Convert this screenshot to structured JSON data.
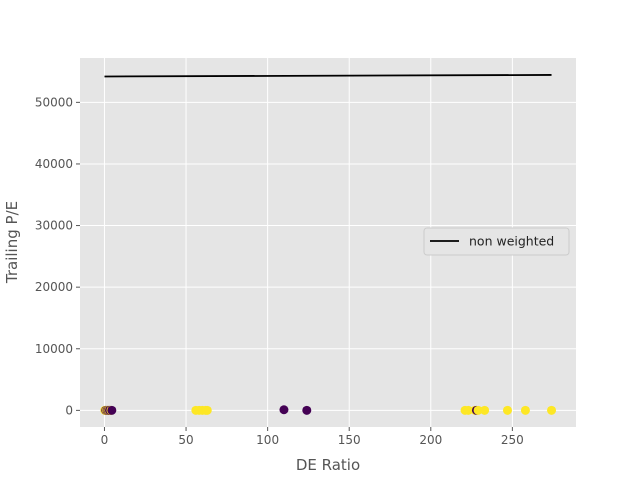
{
  "chart_data": {
    "type": "scatter",
    "xlabel": "DE Ratio",
    "ylabel": "Trailing P/E",
    "xlim": [
      -15,
      289
    ],
    "ylim": [
      -2700,
      57200
    ],
    "xticks": [
      0,
      50,
      100,
      150,
      200,
      250
    ],
    "yticks": [
      0,
      10000,
      20000,
      30000,
      40000,
      50000
    ],
    "grid": true,
    "legend_position": "center-right",
    "colors": {
      "background": "#e5e5e5",
      "grid": "#ffffff",
      "line": "#000000",
      "class_0": "#440154",
      "class_1": "#fde725"
    },
    "line_series": {
      "name": "non weighted",
      "x": [
        0,
        274
      ],
      "y": [
        54200,
        54450
      ]
    },
    "scatter_points": [
      {
        "x": 0.2,
        "y": 0,
        "cls": 1
      },
      {
        "x": 0.5,
        "y": 0,
        "cls": 1
      },
      {
        "x": 0.8,
        "y": 0,
        "cls": 0
      },
      {
        "x": 1.2,
        "y": 0,
        "cls": 1
      },
      {
        "x": 1.6,
        "y": 0,
        "cls": 0
      },
      {
        "x": 2.0,
        "y": 0,
        "cls": 1
      },
      {
        "x": 2.3,
        "y": 0,
        "cls": 0
      },
      {
        "x": 2.7,
        "y": 0,
        "cls": 1
      },
      {
        "x": 3.1,
        "y": 0,
        "cls": 0
      },
      {
        "x": 3.5,
        "y": 0,
        "cls": 0
      },
      {
        "x": 4.0,
        "y": 0,
        "cls": 1
      },
      {
        "x": 4.5,
        "y": 0,
        "cls": 0
      },
      {
        "x": 56,
        "y": 0,
        "cls": 1
      },
      {
        "x": 58,
        "y": 0,
        "cls": 1
      },
      {
        "x": 60,
        "y": 0,
        "cls": 1
      },
      {
        "x": 62,
        "y": 0,
        "cls": 1
      },
      {
        "x": 63,
        "y": 0,
        "cls": 1
      },
      {
        "x": 110,
        "y": 100,
        "cls": 0
      },
      {
        "x": 124,
        "y": 0,
        "cls": 0
      },
      {
        "x": 221,
        "y": 0,
        "cls": 1
      },
      {
        "x": 223,
        "y": 0,
        "cls": 1
      },
      {
        "x": 227,
        "y": 0,
        "cls": 1
      },
      {
        "x": 228,
        "y": 0,
        "cls": 0
      },
      {
        "x": 229,
        "y": 0,
        "cls": 1
      },
      {
        "x": 233,
        "y": 0,
        "cls": 1
      },
      {
        "x": 247,
        "y": 0,
        "cls": 1
      },
      {
        "x": 258,
        "y": 0,
        "cls": 1
      },
      {
        "x": 274,
        "y": 0,
        "cls": 1
      }
    ]
  }
}
